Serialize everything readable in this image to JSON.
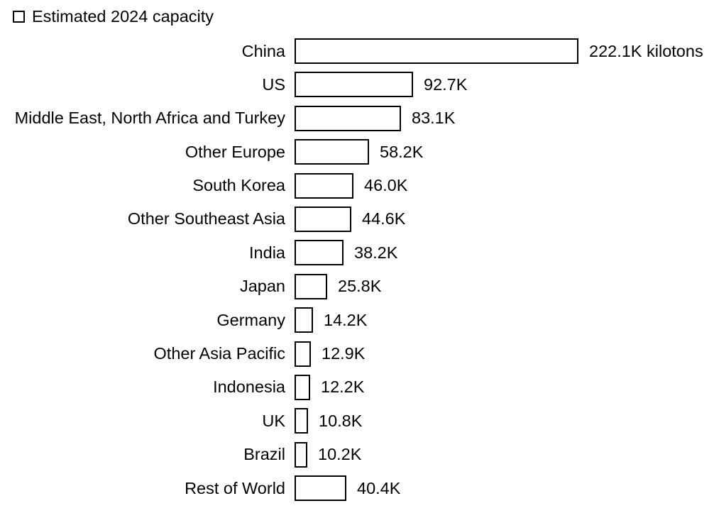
{
  "legend": {
    "label": "Estimated 2024 capacity"
  },
  "chart_data": {
    "type": "bar",
    "orientation": "horizontal",
    "title": "",
    "legend_entries": [
      "Estimated 2024 capacity"
    ],
    "legend_position": "top-left",
    "unit": "kilotons",
    "grid": false,
    "axes_shown": false,
    "categories": [
      "China",
      "US",
      "Middle East, North Africa and Turkey",
      "Other Europe",
      "South Korea",
      "Other Southeast Asia",
      "India",
      "Japan",
      "Germany",
      "Other Asia Pacific",
      "Indonesia",
      "UK",
      "Brazil",
      "Rest of World"
    ],
    "values": [
      222.1,
      92.7,
      83.1,
      58.2,
      46.0,
      44.6,
      38.2,
      25.8,
      14.2,
      12.9,
      12.2,
      10.8,
      10.2,
      40.4
    ],
    "value_labels": [
      "222.1K kilotons",
      "92.7K",
      "83.1K",
      "58.2K",
      "46.0K",
      "44.6K",
      "38.2K",
      "25.8K",
      "14.2K",
      "12.9K",
      "12.2K",
      "10.8K",
      "10.2K",
      "40.4K"
    ],
    "xlim": [
      0,
      222.1
    ],
    "colors": {
      "bar_fill": "#ffffff",
      "bar_stroke": "#000000",
      "text": "#000000",
      "background": "#ffffff"
    }
  }
}
